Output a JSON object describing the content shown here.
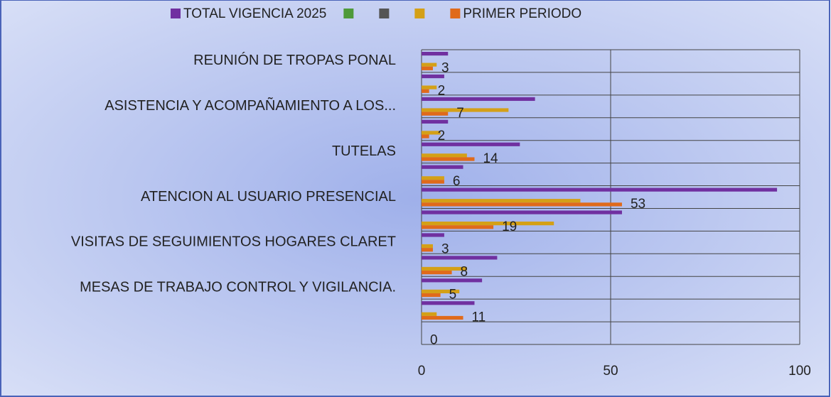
{
  "chart_data": {
    "type": "bar",
    "orientation": "horizontal",
    "categories": [
      "REUNIÓN DE TROPAS PONAL",
      null,
      "ASISTENCIA Y ACOMPAÑAMIENTO A LOS...",
      null,
      "TUTELAS",
      null,
      "ATENCION AL USUARIO PRESENCIAL",
      null,
      "VISITAS DE SEGUIMIENTOS  HOGARES CLARET",
      null,
      "MESAS DE TRABAJO CONTROL Y VIGILANCIA.",
      null,
      null
    ],
    "series": [
      {
        "name": "TOTAL VIGENCIA 2025",
        "color": "#7030a0",
        "values": [
          7,
          6,
          30,
          7,
          26,
          11,
          94,
          53,
          6,
          20,
          16,
          14,
          0
        ]
      },
      {
        "color": "#4e9a3a",
        "values": [
          0,
          0,
          0,
          0,
          0,
          0,
          0,
          0,
          0,
          0,
          0,
          0,
          0
        ]
      },
      {
        "color": "#555555",
        "values": [
          0,
          0,
          0,
          0,
          0,
          0,
          0,
          0,
          0,
          0,
          0,
          0,
          0
        ]
      },
      {
        "color": "#d4a017",
        "values": [
          4,
          4,
          23,
          5,
          12,
          6,
          42,
          35,
          3,
          12,
          10,
          4,
          0
        ]
      },
      {
        "name": "PRIMER PERIODO",
        "color": "#e06a1b",
        "values": [
          3,
          2,
          7,
          2,
          14,
          6,
          53,
          19,
          3,
          8,
          5,
          11,
          0
        ],
        "data_labels": true
      }
    ],
    "xlim": [
      0,
      100
    ],
    "xticks": [
      0,
      50,
      100
    ],
    "grid": true,
    "legend": "top"
  }
}
